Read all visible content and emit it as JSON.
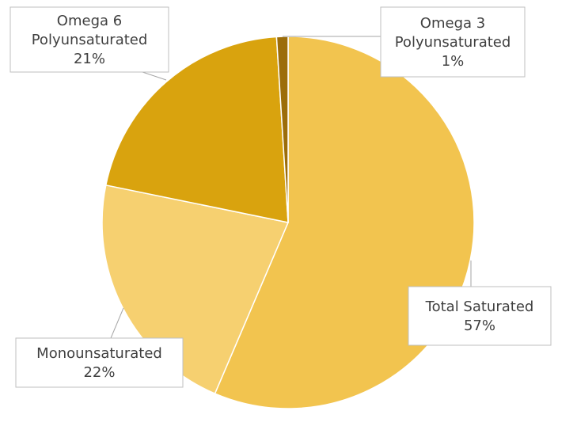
{
  "chart_data": {
    "type": "pie",
    "slices": [
      {
        "label_lines": [
          "Total Saturated"
        ],
        "value": 57,
        "value_label": "57%",
        "color": "#f2c44f"
      },
      {
        "label_lines": [
          "Monounsaturated"
        ],
        "value": 22,
        "value_label": "22%",
        "color": "#f6d070"
      },
      {
        "label_lines": [
          "Omega 6",
          "Polyunsaturated"
        ],
        "value": 21,
        "value_label": "21%",
        "color": "#d9a30e"
      },
      {
        "label_lines": [
          "Omega 3",
          "Polyunsaturated"
        ],
        "value": 1,
        "value_label": "1%",
        "color": "#9c6d0a"
      }
    ],
    "start_angle_deg": 0,
    "direction": "clockwise",
    "legend": "none"
  }
}
